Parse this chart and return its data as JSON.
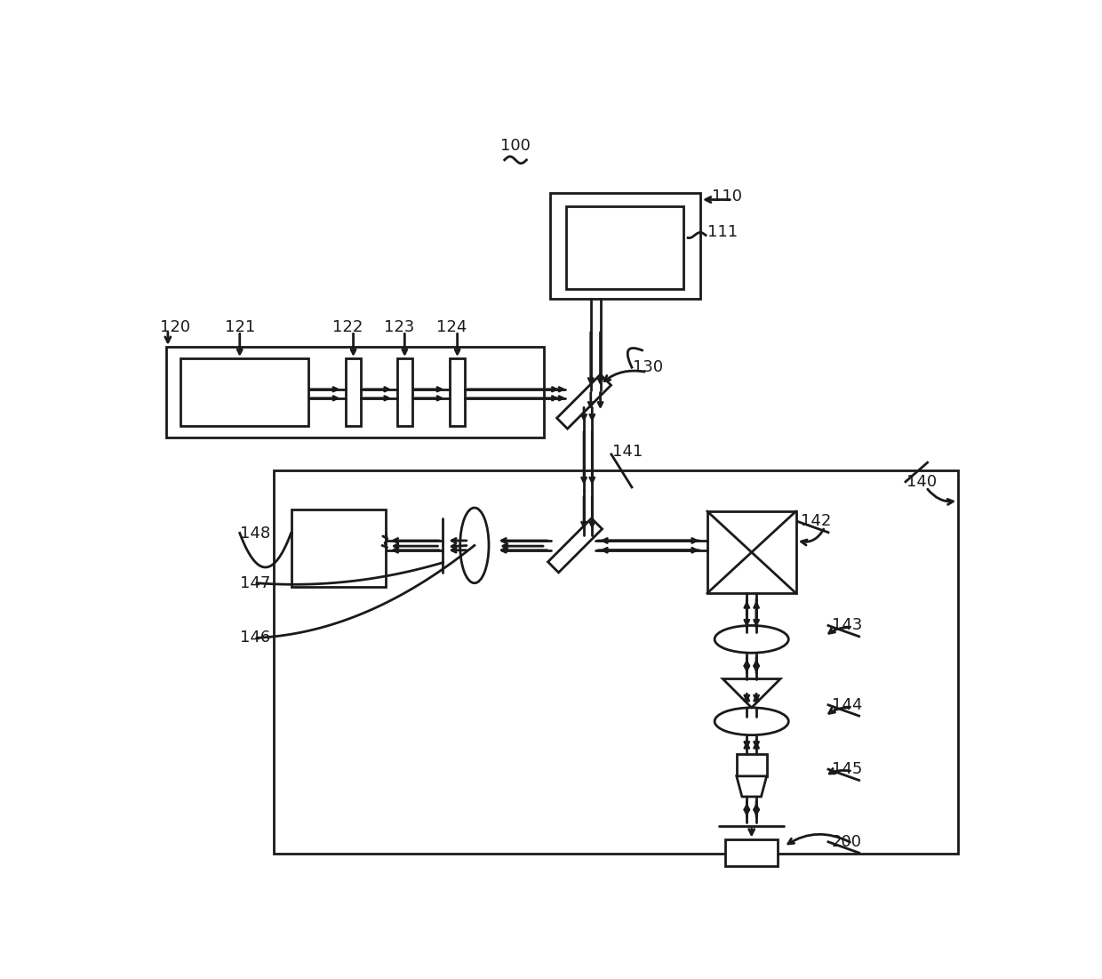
{
  "bg_color": "#ffffff",
  "line_color": "#1a1a1a",
  "fig_width": 12.4,
  "fig_height": 11.01,
  "dpi": 100
}
